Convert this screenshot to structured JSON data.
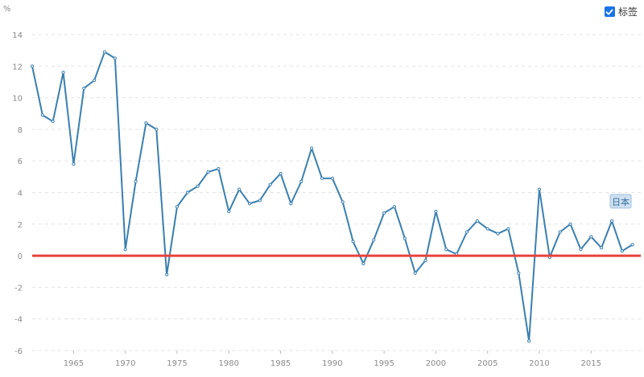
{
  "legend": {
    "checkbox_label": "标签",
    "checked": true
  },
  "chart_data": {
    "type": "line",
    "unit_label": "%",
    "title": "",
    "xlabel": "",
    "ylabel": "",
    "xlim": [
      1960,
      2020
    ],
    "ylim": [
      -6,
      14
    ],
    "yticks": [
      -6,
      -4,
      -2,
      0,
      2,
      4,
      6,
      8,
      10,
      12,
      14
    ],
    "xticks": [
      1965,
      1970,
      1975,
      1980,
      1985,
      1990,
      1995,
      2000,
      2005,
      2010,
      2015
    ],
    "grid": true,
    "reference_line": {
      "y": 0,
      "color": "#e8423b"
    },
    "series": [
      {
        "name": "日本",
        "color": "#3a7fb0",
        "x": [
          1961,
          1962,
          1963,
          1964,
          1965,
          1966,
          1967,
          1968,
          1969,
          1970,
          1971,
          1972,
          1973,
          1974,
          1975,
          1976,
          1977,
          1978,
          1979,
          1980,
          1981,
          1982,
          1983,
          1984,
          1985,
          1986,
          1987,
          1988,
          1989,
          1990,
          1991,
          1992,
          1993,
          1994,
          1995,
          1996,
          1997,
          1998,
          1999,
          2000,
          2001,
          2002,
          2003,
          2004,
          2005,
          2006,
          2007,
          2008,
          2009,
          2010,
          2011,
          2012,
          2013,
          2014,
          2015,
          2016,
          2017,
          2018,
          2019
        ],
        "values": [
          12.0,
          8.9,
          8.5,
          11.6,
          5.8,
          10.6,
          11.1,
          12.9,
          12.5,
          0.4,
          4.7,
          8.4,
          8.0,
          -1.2,
          3.1,
          4.0,
          4.4,
          5.3,
          5.5,
          2.8,
          4.2,
          3.3,
          3.5,
          4.5,
          5.2,
          3.3,
          4.7,
          6.8,
          4.9,
          4.9,
          3.4,
          0.9,
          -0.5,
          1.0,
          2.7,
          3.1,
          1.1,
          -1.1,
          -0.3,
          2.8,
          0.4,
          0.1,
          1.5,
          2.2,
          1.7,
          1.4,
          1.7,
          -1.1,
          -5.4,
          4.2,
          -0.1,
          1.5,
          2.0,
          0.4,
          1.2,
          0.5,
          2.2,
          0.3,
          0.7
        ]
      }
    ]
  }
}
